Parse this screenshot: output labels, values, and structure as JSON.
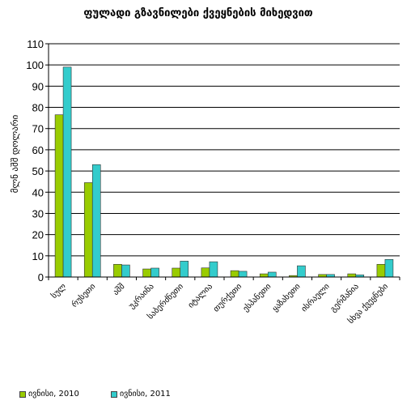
{
  "chart_data": {
    "type": "bar",
    "title": "ფულადი გზავნილები ქვეყნების მიხედვით",
    "ylabel": "მლნ აშშ დოლარი",
    "xlabel": "",
    "ylim": [
      0,
      110
    ],
    "yticks": [
      0,
      10,
      20,
      30,
      40,
      50,
      60,
      70,
      80,
      90,
      100,
      110
    ],
    "grid": true,
    "legend": "bottom",
    "categories": [
      "სულ",
      "რუსეთი",
      "აშშ",
      "უკრაინა",
      "საბერძნეთი",
      "იტალია",
      "თურქეთი",
      "ესპანეთი",
      "ყაზახეთი",
      "ისრაელი",
      "გერმანია",
      "სხვა ქვეყნები"
    ],
    "series": [
      {
        "name": "ივნისი, 2010",
        "color": "#99cc00",
        "values": [
          76.5,
          44.5,
          6.0,
          3.8,
          4.2,
          4.3,
          3.0,
          1.5,
          0.7,
          1.2,
          1.5,
          6.0
        ]
      },
      {
        "name": "ივნისი, 2011",
        "color": "#33cccc",
        "values": [
          99.0,
          53.0,
          5.7,
          4.2,
          7.5,
          7.2,
          2.7,
          2.3,
          5.3,
          1.2,
          1.0,
          8.3
        ]
      }
    ]
  }
}
